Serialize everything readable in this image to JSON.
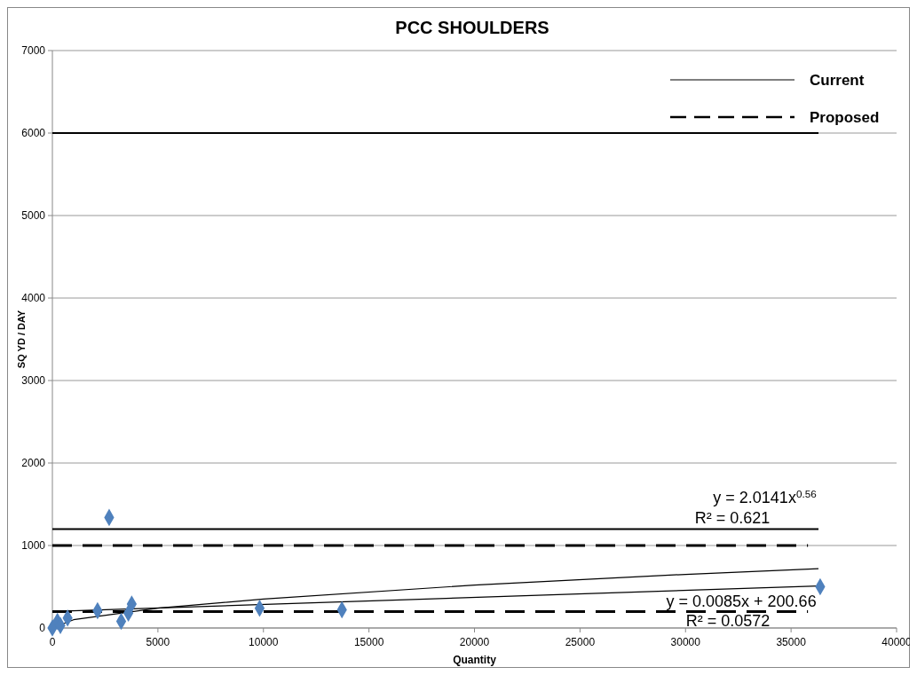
{
  "chart_data": {
    "type": "scatter",
    "title": "PCC SHOULDERS",
    "xlabel": "Quantity",
    "ylabel": "SQ YD / DAY",
    "xlim": [
      0,
      40000
    ],
    "xticks": [
      0,
      5000,
      10000,
      15000,
      20000,
      25000,
      30000,
      35000,
      40000
    ],
    "ylim": [
      0,
      7000
    ],
    "yticks": [
      0,
      1000,
      2000,
      3000,
      4000,
      5000,
      6000,
      7000
    ],
    "grid": "y",
    "legend": "top right",
    "series": [
      {
        "marker": "diamond",
        "color": "#4f81bd",
        "x": [
          0,
          240,
          380,
          720,
          2140,
          2690,
          3260,
          3600,
          3760,
          9820,
          13720,
          36380
        ],
        "values": [
          0,
          80,
          30,
          120,
          210,
          1340,
          80,
          180,
          290,
          240,
          220,
          500
        ]
      },
      {
        "type": "line",
        "name": "Current",
        "color": "#000000",
        "line_style": "solid",
        "x": [
          0,
          36300
        ],
        "values": [
          6000,
          6000
        ]
      },
      {
        "type": "line",
        "color": "#000000",
        "line_style": "solid",
        "x": [
          0,
          36300
        ],
        "values": [
          1200,
          1200
        ]
      },
      {
        "type": "line",
        "name": "Proposed",
        "color": "#000000",
        "line_style": "dashed",
        "x": [
          0,
          35800
        ],
        "values": [
          1000,
          1000
        ]
      },
      {
        "type": "line",
        "color": "#000000",
        "line_style": "dashed",
        "x": [
          0,
          35800
        ],
        "values": [
          200,
          200
        ]
      },
      {
        "type": "line",
        "color": "#000000",
        "line_style": "solid",
        "x": [
          0,
          1000,
          5000,
          10000,
          20000,
          30000,
          36300
        ],
        "values": [
          0,
          100,
          240,
          350,
          520,
          650,
          720
        ]
      },
      {
        "type": "line",
        "color": "#000000",
        "line_style": "solid",
        "x": [
          0,
          36300
        ],
        "values": [
          200,
          510
        ]
      }
    ],
    "annotations": [
      "y = 2.0141x$^{0.56}$",
      "R² = 0.621",
      "y = 0.0085x + 200.66",
      "R² = 0.0572"
    ]
  }
}
